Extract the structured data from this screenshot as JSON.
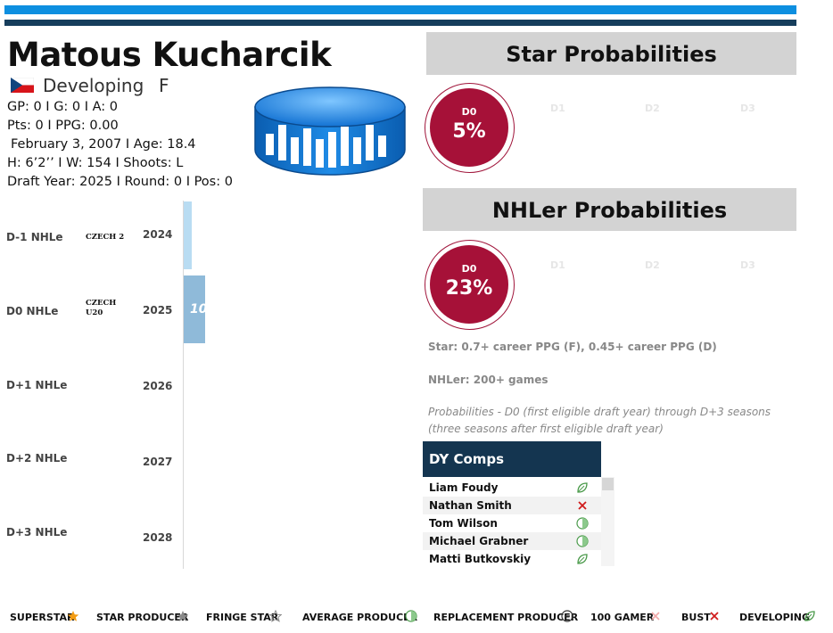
{
  "player": {
    "name": "Matous Kucharcik",
    "status": "Developing",
    "position": "F",
    "stats_line": "GP: 0 I G: 0 I A: 0",
    "points_line": "Pts: 0 I PPG: 0.00",
    "birth_line": "February 3, 2007 I Age: 18.4",
    "body_line": "H: 6’2’’ I W: 154 I Shoots: L",
    "draft_line": "Draft Year: 2025 I Round: 0 I Pos: 0"
  },
  "nhle_rows": [
    {
      "label": "D-1 NHLe",
      "league": "CZECH 2",
      "year": "2024",
      "bar_value": ""
    },
    {
      "label": "D0 NHLe",
      "league": "CZECH U20",
      "year": "2025",
      "bar_value": "10"
    },
    {
      "label": "D+1 NHLe",
      "league": "",
      "year": "2026",
      "bar_value": ""
    },
    {
      "label": "D+2 NHLe",
      "league": "",
      "year": "2027",
      "bar_value": ""
    },
    {
      "label": "D+3 NHLe",
      "league": "",
      "year": "2028",
      "bar_value": ""
    }
  ],
  "star": {
    "title": "Star Probabilities",
    "active_label": "D0",
    "active_value": "5%",
    "other_labels": [
      "D1",
      "D2",
      "D3"
    ]
  },
  "nhler": {
    "title": "NHLer Probabilities",
    "active_label": "D0",
    "active_value": "23%",
    "other_labels": [
      "D1",
      "D2",
      "D3"
    ]
  },
  "notes": {
    "star_def": "Star: 0.7+ career PPG (F), 0.45+ career PPG (D)",
    "nhler_def": "NHLer: 200+ games",
    "prob_line1": "Probabilities - D0 (first eligible draft year) through D+3 seasons",
    "prob_line2": "(three seasons after first eligible draft year)"
  },
  "comps": {
    "title": "DY Comps",
    "items": [
      {
        "name": "Liam Foudy",
        "icon": "developing-icon"
      },
      {
        "name": "Nathan Smith",
        "icon": "bust-icon"
      },
      {
        "name": "Tom Wilson",
        "icon": "average-producer-icon"
      },
      {
        "name": "Michael Grabner",
        "icon": "average-producer-icon"
      },
      {
        "name": "Matti Butkovskiy",
        "icon": "developing-icon"
      }
    ]
  },
  "legend": [
    {
      "label": "SUPERSTAR",
      "icon": "star-orange-icon"
    },
    {
      "label": "STAR PRODUCER",
      "icon": "star-gray-icon"
    },
    {
      "label": "FRINGE STAR",
      "icon": "star-outline-icon"
    },
    {
      "label": "AVERAGE PRODUCER",
      "icon": "half-circle-icon"
    },
    {
      "label": "REPLACEMENT PRODUCER",
      "icon": "minus-circle-icon"
    },
    {
      "label": "100 GAMER",
      "icon": "light-x-icon"
    },
    {
      "label": "BUST",
      "icon": "red-x-icon"
    },
    {
      "label": "DEVELOPING",
      "icon": "leaf-icon"
    }
  ],
  "colors": {
    "top_bar": "#0d8fe0",
    "dark_bar": "#163e5c",
    "probability": "#a61138",
    "comps_header": "#143550",
    "bar_d_minus_1": "#b9dcf2",
    "bar_d0": "#8fbad9"
  }
}
